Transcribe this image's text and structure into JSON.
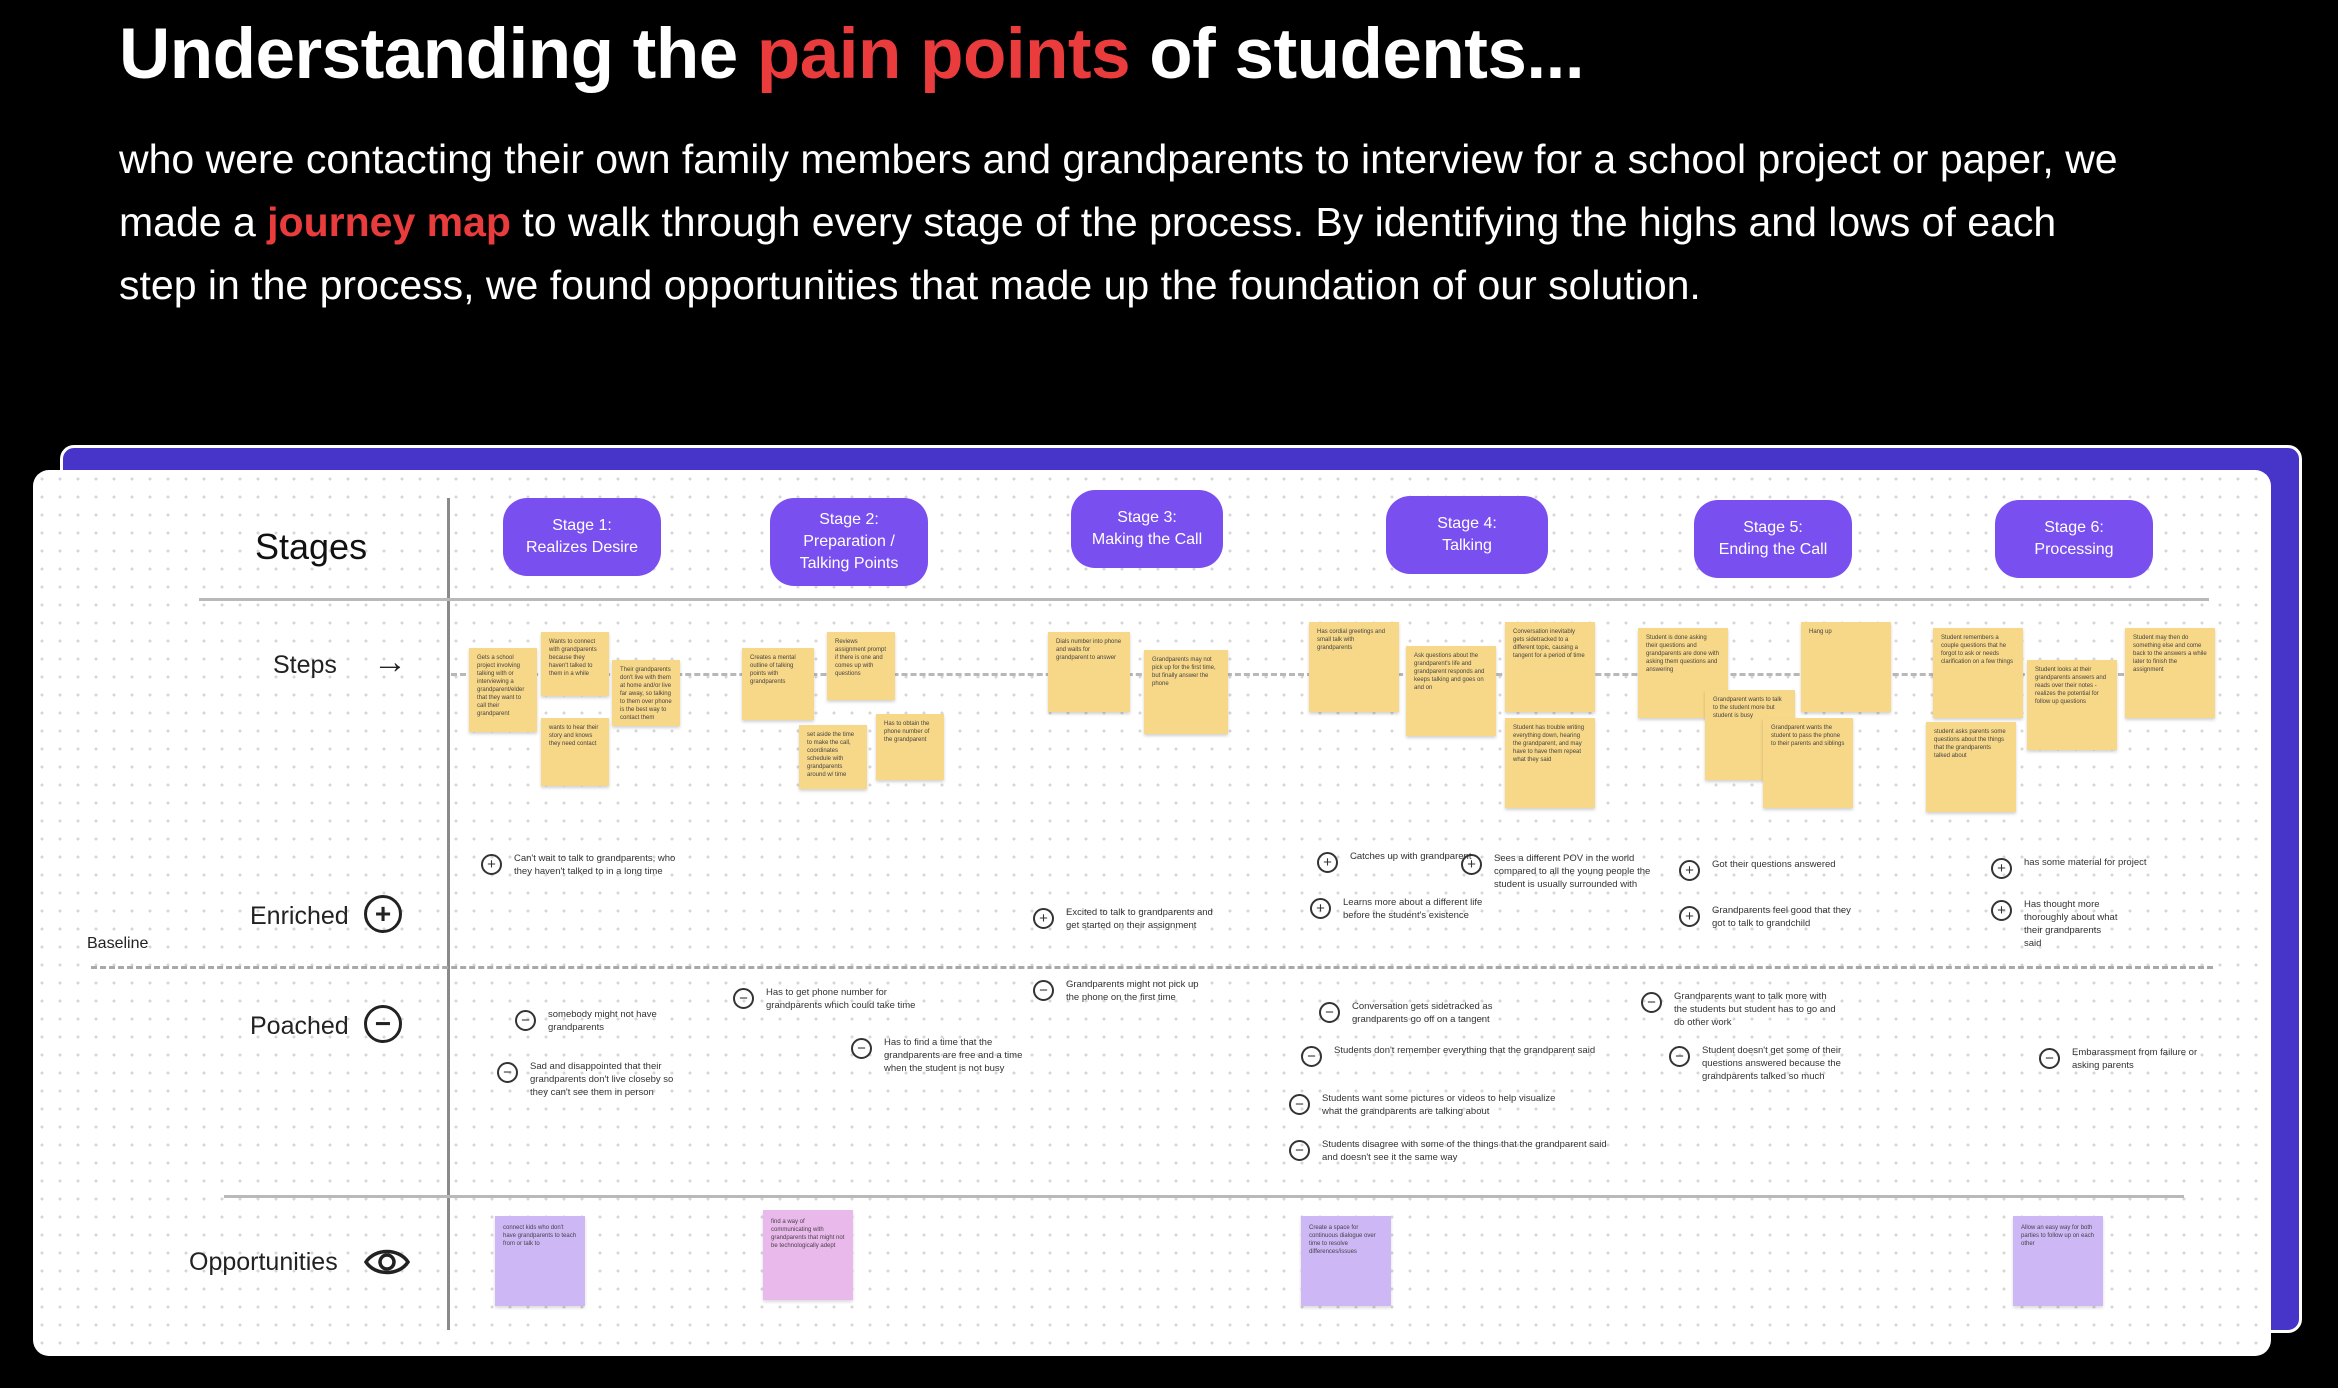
{
  "heading": {
    "part1": "Understanding the ",
    "highlight": "pain points",
    "part2": " of students..."
  },
  "intro": {
    "part1": "who were contacting their own family members and grandparents to interview for a school project or paper, we made a ",
    "highlight": "journey map",
    "part2": " to walk through every stage of the process. By identifying the highs and lows of each step in the process, we found opportunities that made up the foundation of our solution."
  },
  "colors": {
    "accent": "#ea3c3c",
    "stage_pill": "#7a4ff0",
    "board_frame": "#4734c8",
    "sticky": "#f7d889",
    "opportunity": "#cdb7f5",
    "opportunity_pink": "#eab9ec"
  },
  "map": {
    "stages_label": "Stages",
    "steps_label": "Steps",
    "enriched_label": "Enriched",
    "poached_label": "Poached",
    "opportunities_label": "Opportunities",
    "baseline_label": "Baseline",
    "icons": {
      "steps": "arrow-right-icon",
      "enriched": "plus-circle-icon",
      "poached": "minus-circle-icon",
      "opportunities": "eye-icon"
    },
    "stages": [
      {
        "line1": "Stage 1:",
        "line2": "Realizes Desire"
      },
      {
        "line1": "Stage 2:",
        "line2": "Preparation / Talking Points"
      },
      {
        "line1": "Stage 3:",
        "line2": "Making the Call"
      },
      {
        "line1": "Stage 4:",
        "line2": "Talking"
      },
      {
        "line1": "Stage 5:",
        "line2": "Ending the Call"
      },
      {
        "line1": "Stage 6:",
        "line2": "Processing"
      }
    ],
    "steps": [
      "Gets a school project involving talking with or interviewing a grandparent/elder that they want to call their grandparent",
      "Wants to connect with grandparents because they haven't talked to them in a while",
      "Their grandparents don't live with them at home and/or live far away, so talking to them over phone is the best way to contact them",
      "wants to hear their story and knows they need contact",
      "Creates a mental outline of talking points with grandparents",
      "Reviews assignment prompt if there is one and comes up with questions",
      "set aside the time to make the call, coordinates schedule with grandparents around w/ time",
      "Has to obtain the phone number of the grandparent",
      "Dials number into phone and waits for grandparent to answer",
      "Grandparents may not pick up for the first time, but finally answer the phone",
      "Has cordial greetings and small talk with grandparents",
      "Ask questions about the grandparent's life and grandparent responds and keeps talking and goes on and on",
      "Conversation inevitably gets sidetracked to a different topic, causing a tangent for a period of time",
      "Student has trouble writing everything down, hearing the grandparent, and may have to have them repeat what they said",
      "Student is done asking their questions and grandparents are done with asking them questions and answering",
      "Grandparent wants to talk to the student more but student is busy",
      "Grandparent wants the student to pass the phone to their parents and siblings",
      "Hang up",
      "Student remembers a couple questions that he forgot to ask or needs clarification on a few things",
      "student asks parents some questions about the things that the grandparents talked about",
      "Student looks at their grandparents answers and reads over their notes - realizes the potential for follow up questions",
      "Student may then do something else and come back to the answers a while later to finish the assignment"
    ],
    "enriched": [
      "Can't wait to talk to grandparents, who they haven't talked to in a long time",
      "Excited to talk to grandparents and get started on their assignment",
      "Catches up with grandparent",
      "Learns more about a different life before the student's existence",
      "Sees a different POV in the world compared to all the young people the student is usually surrounded with",
      "Got their questions answered",
      "Grandparents feel good that they got to talk to grandchild",
      "has some material for project",
      "Has thought more thoroughly about what their grandparents said"
    ],
    "poached": [
      "somebody might not have grandparents",
      "Sad and disappointed that their grandparents don't live closeby so they can't see them in person",
      "Has to get phone number for grandparents which could take time",
      "Has to find a time that the grandparents are free and a time when the student is not busy",
      "Grandparents might not pick up the phone on the first time",
      "Conversation gets sidetracked as grandparents go off on a tangent",
      "Students don't remember everything that the grandparent said",
      "Students want some pictures or videos to help visualize what the grandparents are talking about",
      "Students disagree with some of the things that the grandparent said and doesn't see it the same way",
      "Grandparents want to talk more with the students but student has to go and do other work",
      "Student doesn't get some of their questions answered because the grandparents talked so much",
      "Embarassment from failure or asking parents"
    ],
    "opportunities": [
      "connect kids who don't have grandparents to teach from or talk to",
      "find a way of communicating with grandparents that might not be technologically adept",
      "Create a space for continuous dialogue over time to resolve differences/issues",
      "Allow an easy way for both parties to follow up on each other"
    ]
  }
}
